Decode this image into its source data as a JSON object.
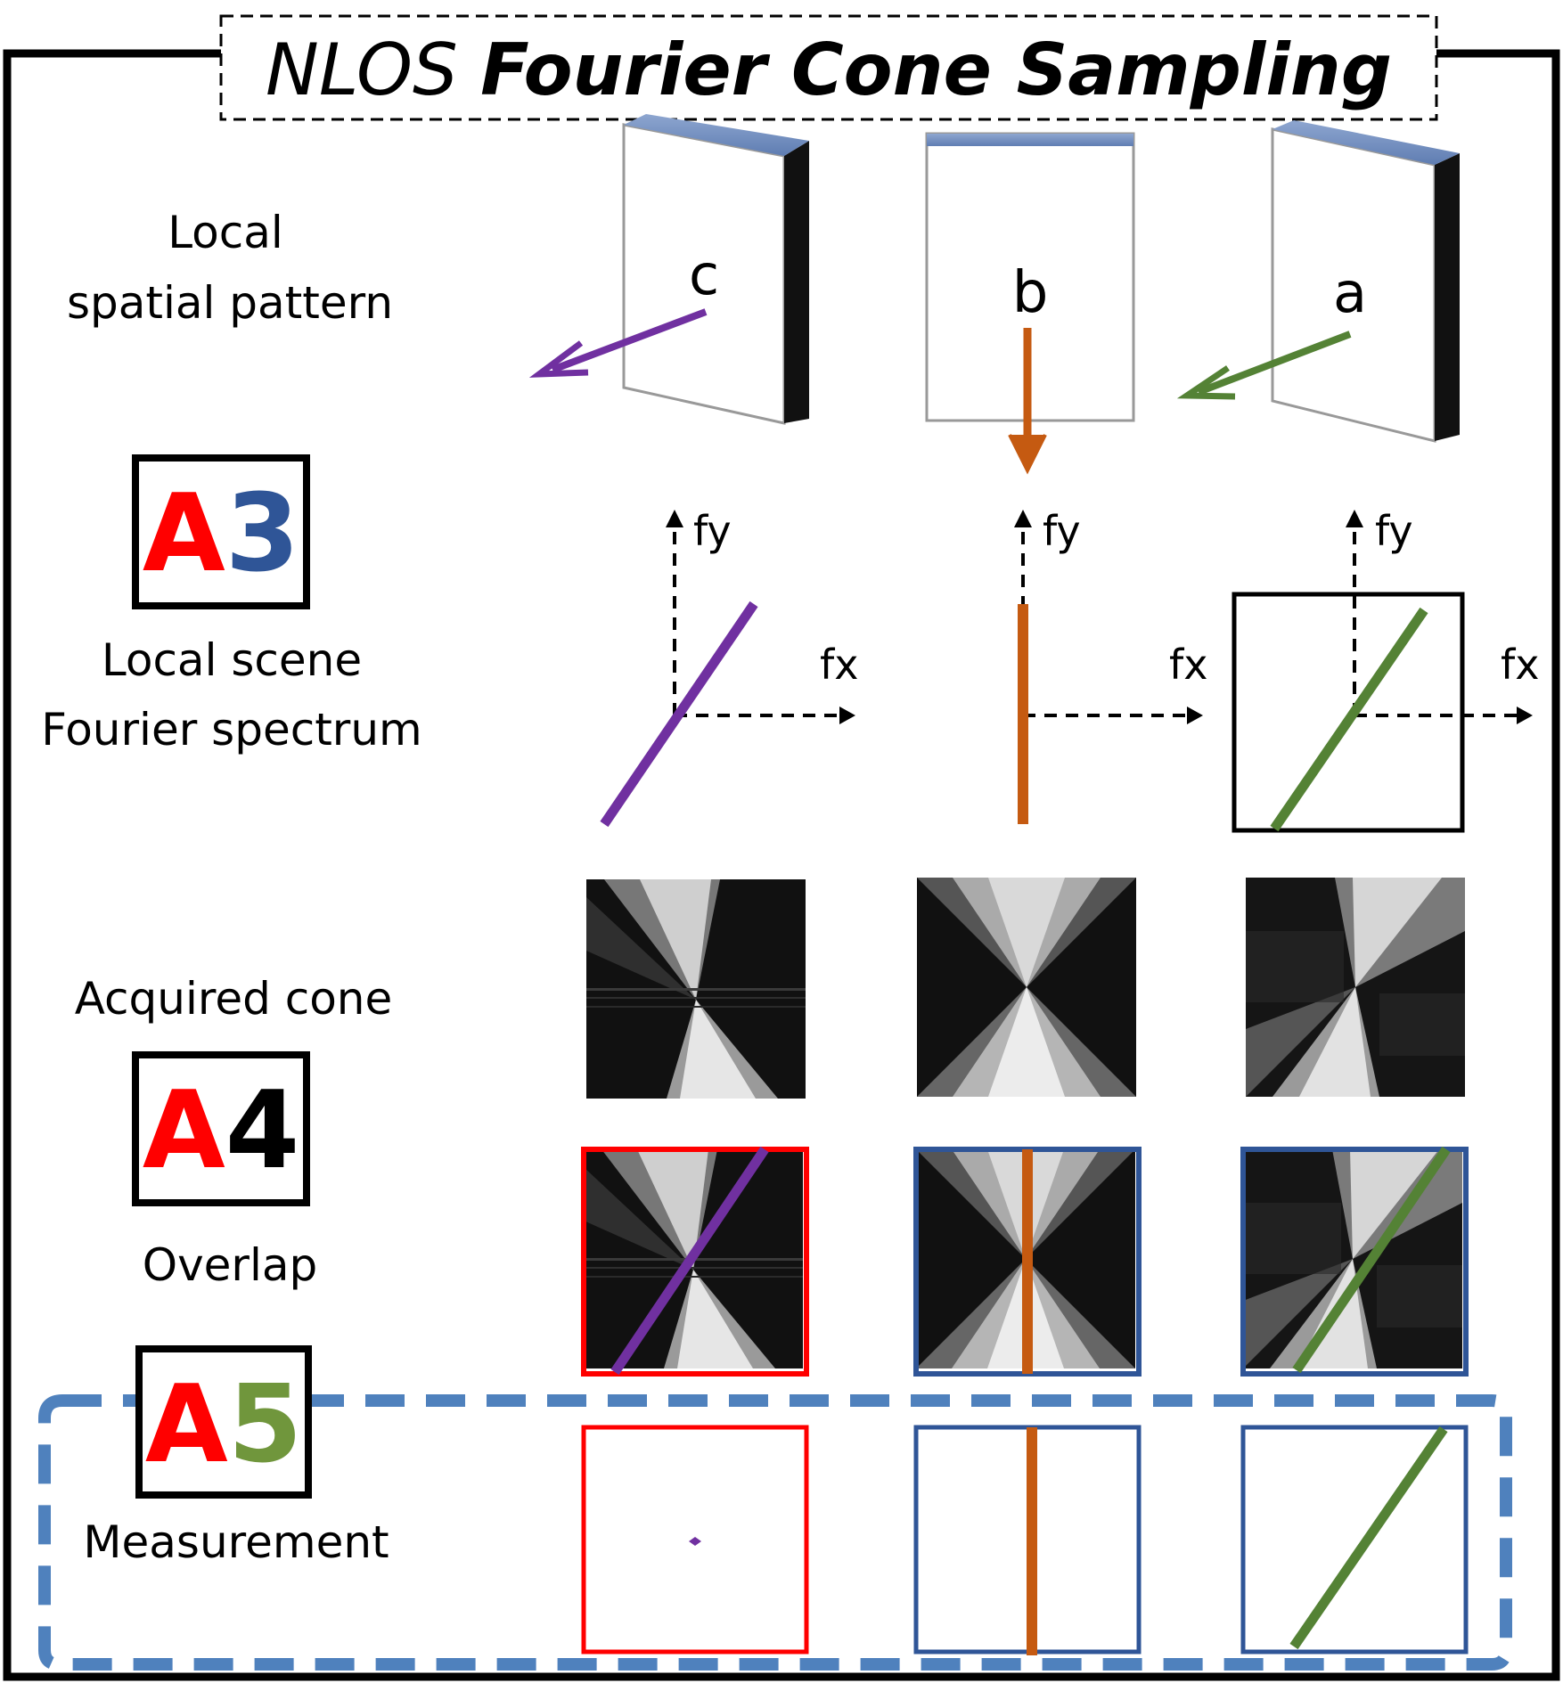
{
  "title": {
    "prefix": "NLOS",
    "main": "Fourier Cone Sampling"
  },
  "rows": {
    "spatial": {
      "line1": "Local",
      "line2": "spatial pattern"
    },
    "spectrum": {
      "line1": "Local scene",
      "line2": "Fourier spectrum"
    },
    "acquired": "Acquired cone",
    "overlap": "Overlap",
    "measurement": "Measurement"
  },
  "badges": {
    "a3": {
      "letter": "A",
      "digit": "3"
    },
    "a4": {
      "letter": "A",
      "digit": "4"
    },
    "a5": {
      "letter": "A",
      "digit": "5"
    }
  },
  "walls": {
    "c": "c",
    "b": "b",
    "a": "a"
  },
  "axes": {
    "fy": "fy",
    "fx": "fx"
  },
  "colors": {
    "purple": "#7030a0",
    "orange": "#c55a11",
    "green": "#548235",
    "red": "#ff0000",
    "blue": "#2f5597",
    "dash_blue": "#4f81bd",
    "a3_digit": "#2f5597",
    "a4_digit": "#000000",
    "a5_digit": "#70963c"
  }
}
